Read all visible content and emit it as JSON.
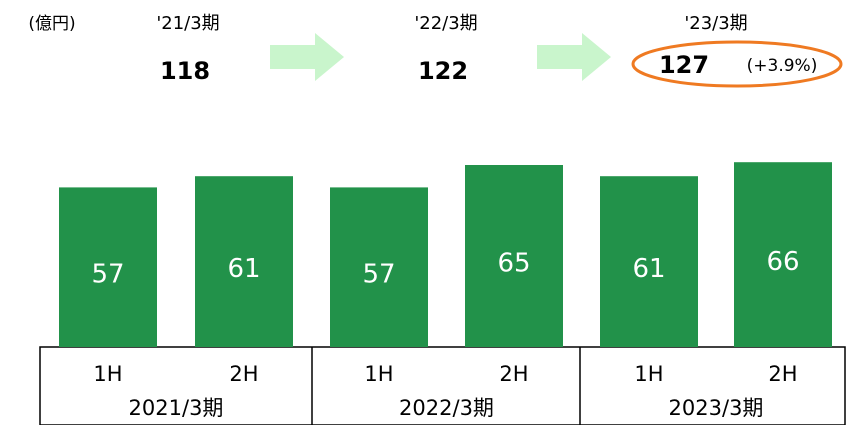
{
  "chart_data": {
    "type": "bar",
    "unit": "(億円)",
    "categories": [
      "1H",
      "2H",
      "1H",
      "2H",
      "1H",
      "2H"
    ],
    "groups": [
      "2021/3期",
      "2022/3期",
      "2023/3期"
    ],
    "values": [
      57,
      61,
      57,
      65,
      61,
      66
    ],
    "color": "#22924a",
    "summary": [
      {
        "label": "'21/3期",
        "value": 118
      },
      {
        "label": "'22/3期",
        "value": 122
      },
      {
        "label": "'23/3期",
        "value": 127,
        "change_label": "(+3.9%)"
      }
    ],
    "arrow_color": "#c9f5cc",
    "highlight_color": "#ef7a22"
  }
}
